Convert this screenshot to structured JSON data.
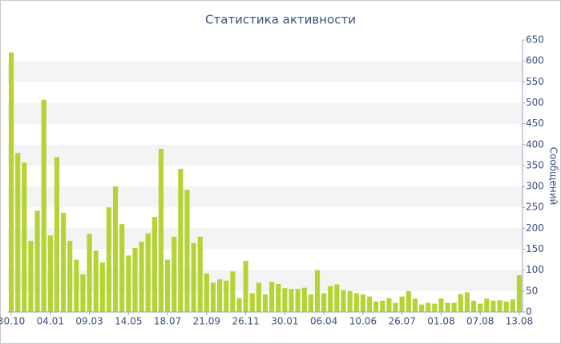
{
  "chart_data": {
    "type": "bar",
    "title": "Статистика активности",
    "y_label": "Сообщений",
    "categories": [
      "30.10",
      null,
      null,
      null,
      null,
      null,
      "04.01",
      null,
      null,
      null,
      null,
      null,
      "09.03",
      null,
      null,
      null,
      null,
      null,
      "14.05",
      null,
      null,
      null,
      null,
      null,
      "18.07",
      null,
      null,
      null,
      null,
      null,
      "21.09",
      null,
      null,
      null,
      null,
      null,
      "26.11",
      null,
      null,
      null,
      null,
      null,
      "30.01",
      null,
      null,
      null,
      null,
      null,
      "06.04",
      null,
      null,
      null,
      null,
      null,
      "10.06",
      null,
      null,
      null,
      null,
      null,
      "26.07",
      null,
      null,
      null,
      null,
      null,
      "01.08",
      null,
      null,
      null,
      null,
      null,
      "07.08",
      null,
      null,
      null,
      null,
      null,
      "13.08"
    ],
    "values": [
      620,
      380,
      357,
      170,
      242,
      507,
      183,
      370,
      237,
      170,
      125,
      90,
      187,
      147,
      118,
      250,
      300,
      210,
      135,
      153,
      168,
      188,
      227,
      390,
      125,
      180,
      342,
      292,
      165,
      180,
      92,
      70,
      78,
      75,
      97,
      33,
      122,
      45,
      70,
      42,
      72,
      67,
      57,
      55,
      55,
      58,
      42,
      100,
      45,
      62,
      66,
      52,
      50,
      45,
      42,
      37,
      25,
      27,
      33,
      22,
      37,
      50,
      32,
      18,
      22,
      20,
      32,
      22,
      22,
      43,
      47,
      27,
      20,
      32,
      27,
      28,
      25,
      30,
      88
    ],
    "color": "#b5d334",
    "ylim": [
      0,
      650
    ],
    "yticks": [
      0,
      50,
      100,
      150,
      200,
      250,
      300,
      350,
      400,
      450,
      500,
      550,
      600,
      650
    ],
    "grid": true
  }
}
